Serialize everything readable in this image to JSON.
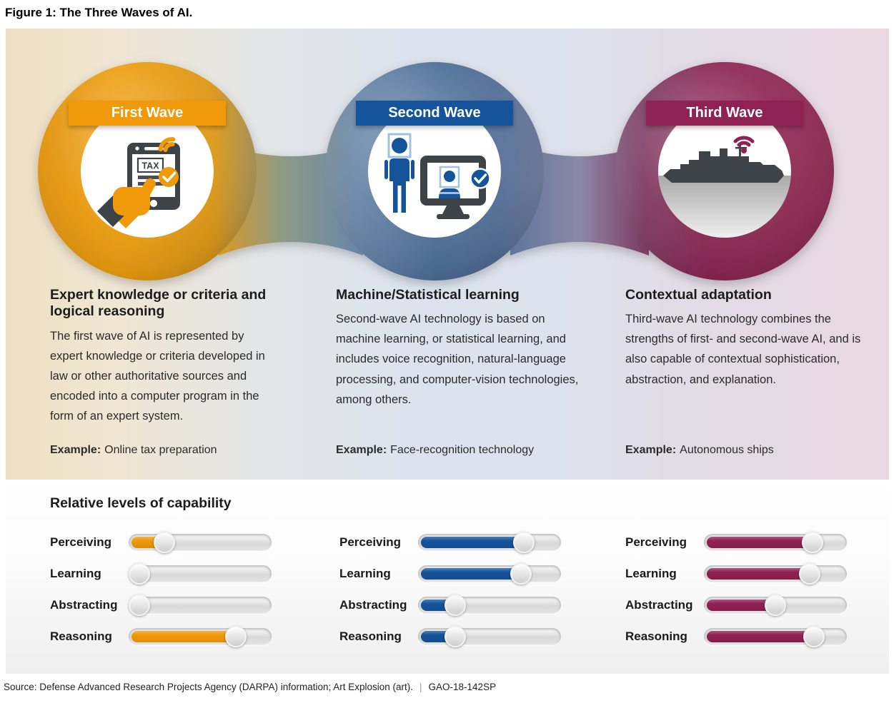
{
  "figure_title": "Figure 1: The Three Waves of AI.",
  "palette": {
    "background_left": "#EEDFC2",
    "background_center": "#DCE3EE",
    "background_right": "#E8D8E2",
    "band_orange": "#EC9C0D",
    "band_blue": "#4E7098",
    "band_maroon": "#8E2753",
    "icon_dark_gray": "#3E4347",
    "light_blue_frame": "#A3C0DC"
  },
  "waves": [
    {
      "label": "First Wave",
      "accent": "#F0990B",
      "icon": "online-tax-preparation-phone-icon",
      "heading": "Expert knowledge or criteria and logical reasoning",
      "body": "The first wave of AI is represented by expert knowledge or criteria developed in law or other authoritative sources and encoded into a computer program in the form of an expert system.",
      "example_label": "Example:",
      "example": "Online tax preparation",
      "capabilities": [
        {
          "label": "Perceiving",
          "value": 24
        },
        {
          "label": "Learning",
          "value": 0
        },
        {
          "label": "Abstracting",
          "value": 0
        },
        {
          "label": "Reasoning",
          "value": 76
        }
      ]
    },
    {
      "label": "Second Wave",
      "accent": "#15549B",
      "icon": "face-recognition-icon",
      "heading": "Machine/Statistical learning",
      "body": "Second-wave AI technology is based on machine learning, or statistical learning, and includes voice recognition, natural-language processing, and computer-vision technologies, among others.",
      "example_label": "Example:",
      "example": "Face-recognition technology",
      "capabilities": [
        {
          "label": "Perceiving",
          "value": 75
        },
        {
          "label": "Learning",
          "value": 73
        },
        {
          "label": "Abstracting",
          "value": 25
        },
        {
          "label": "Reasoning",
          "value": 25
        }
      ]
    },
    {
      "label": "Third Wave",
      "accent": "#8F2153",
      "icon": "autonomous-ship-icon",
      "heading": "Contextual adaptation",
      "body": "Third-wave AI technology combines the strengths of first- and second-wave AI, and is also capable of contextual sophistication, abstraction, and explanation.",
      "example_label": "Example:",
      "example": "Autonomous ships",
      "capabilities": [
        {
          "label": "Perceiving",
          "value": 77
        },
        {
          "label": "Learning",
          "value": 75
        },
        {
          "label": "Abstracting",
          "value": 50
        },
        {
          "label": "Reasoning",
          "value": 78
        }
      ]
    }
  ],
  "capability_section": {
    "heading": "Relative levels of capability"
  },
  "source": {
    "text": "Source: Defense Advanced Research Projects Agency (DARPA) information; Art Explosion (art).",
    "separator": "|",
    "report_number": "GAO-18-142SP"
  }
}
